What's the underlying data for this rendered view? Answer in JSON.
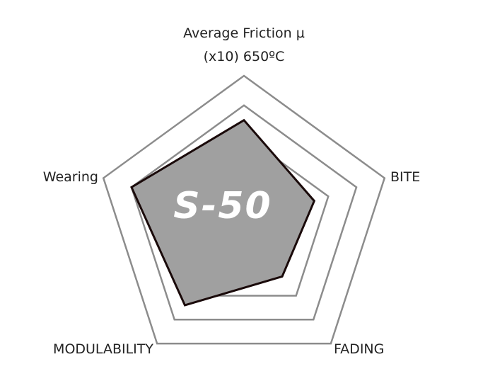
{
  "chart_data": {
    "type": "radar",
    "axes": [
      "Average Friction µ (x10) 650ºC",
      "BITE",
      "FADING",
      "MODULABILITY",
      "Wearing"
    ],
    "axis_label_lines": [
      [
        "Average Friction µ",
        "(x10) 650ºC"
      ],
      [
        "BITE"
      ],
      [
        "FADING"
      ],
      [
        "MODULABILITY"
      ],
      [
        "Wearing"
      ]
    ],
    "rlim": [
      0,
      5
    ],
    "grid_levels": [
      3,
      4,
      5
    ],
    "series": [
      {
        "label_inside": "S-50",
        "values": [
          3.5,
          2.5,
          2.2,
          3.4,
          4.0
        ],
        "fill": "#a0a0a0",
        "stroke": "#1a0a0a"
      }
    ],
    "grid_color": "#8c8c8c",
    "legend": "none"
  }
}
